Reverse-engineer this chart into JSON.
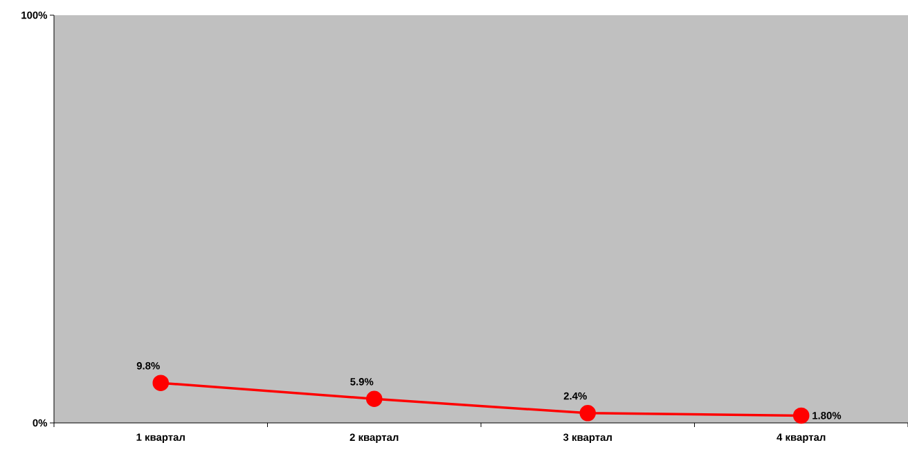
{
  "chart_data": {
    "type": "line",
    "categories": [
      "1 квартал",
      "2 квартал",
      "3 квартал",
      "4 квартал"
    ],
    "series": [
      {
        "color": "#ff0000",
        "values": [
          9.8,
          5.9,
          2.4,
          1.8
        ],
        "value_labels": [
          "9.8%",
          "5.9%",
          "2.4%",
          "1.80%"
        ]
      }
    ],
    "ylim": [
      0,
      100
    ],
    "yticks": [
      {
        "value": 0,
        "label": "0%"
      },
      {
        "value": 100,
        "label": "100%"
      }
    ],
    "marker": "circle",
    "line_style": "solid",
    "grid": false
  }
}
